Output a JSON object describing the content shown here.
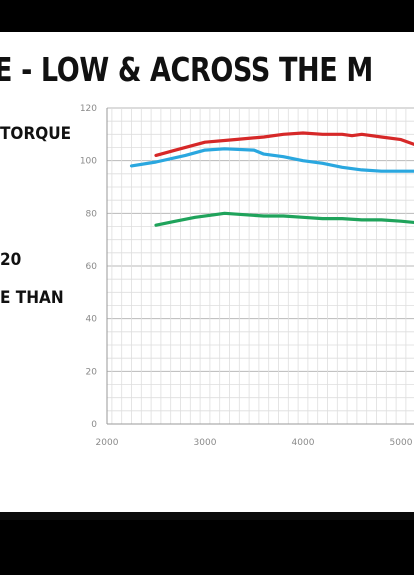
{
  "slide": {
    "headline": "E - LOW & ACROSS THE M",
    "side_lines": [
      "TORQUE",
      "20",
      "E THAN"
    ]
  },
  "chart_data": {
    "type": "line",
    "xlabel": "",
    "ylabel": "",
    "xlim": [
      1850,
      5150
    ],
    "ylim": [
      0,
      120
    ],
    "x_ticks": [
      2000,
      3000,
      4000,
      5000
    ],
    "y_ticks": [
      0,
      20,
      40,
      60,
      80,
      100,
      120
    ],
    "grid": true,
    "series": [
      {
        "color": "#d62828",
        "points": [
          [
            2500,
            102
          ],
          [
            2700,
            104
          ],
          [
            3000,
            107
          ],
          [
            3300,
            108
          ],
          [
            3600,
            109
          ],
          [
            3800,
            110
          ],
          [
            4000,
            110.5
          ],
          [
            4200,
            110
          ],
          [
            4400,
            110
          ],
          [
            4500,
            109.5
          ],
          [
            4600,
            110
          ],
          [
            4800,
            109
          ],
          [
            5000,
            108
          ],
          [
            5150,
            106
          ]
        ]
      },
      {
        "color": "#2aa7df",
        "points": [
          [
            2250,
            98
          ],
          [
            2500,
            99.5
          ],
          [
            2800,
            102
          ],
          [
            3000,
            104
          ],
          [
            3200,
            104.5
          ],
          [
            3500,
            104
          ],
          [
            3600,
            102.5
          ],
          [
            3800,
            101.5
          ],
          [
            4000,
            100
          ],
          [
            4200,
            99
          ],
          [
            4400,
            97.5
          ],
          [
            4600,
            96.5
          ],
          [
            4800,
            96
          ],
          [
            5000,
            96
          ],
          [
            5150,
            96
          ]
        ]
      },
      {
        "color": "#1fa35b",
        "points": [
          [
            2500,
            75.5
          ],
          [
            2700,
            77
          ],
          [
            2900,
            78.5
          ],
          [
            3100,
            79.5
          ],
          [
            3200,
            80
          ],
          [
            3400,
            79.5
          ],
          [
            3600,
            79
          ],
          [
            3800,
            79
          ],
          [
            4000,
            78.5
          ],
          [
            4200,
            78
          ],
          [
            4400,
            78
          ],
          [
            4600,
            77.5
          ],
          [
            4800,
            77.5
          ],
          [
            5000,
            77
          ],
          [
            5150,
            76.5
          ]
        ]
      }
    ]
  }
}
